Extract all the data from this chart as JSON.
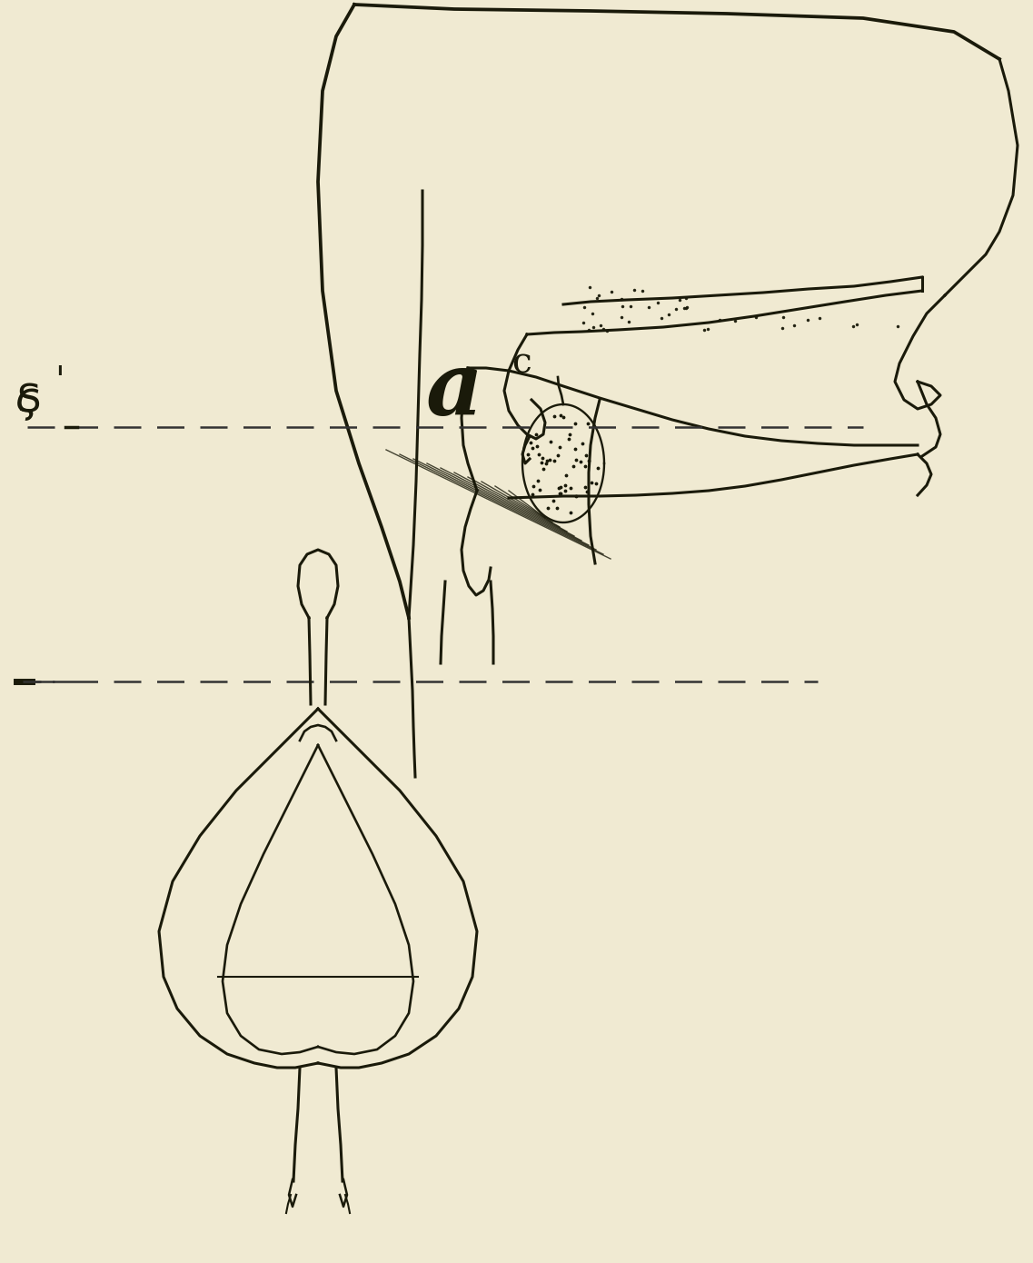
{
  "background_color": "#f0ead2",
  "line_color": "#1a1a0a",
  "dashed_color": "#333333",
  "figsize": [
    11.37,
    13.9
  ],
  "dpi": 100
}
